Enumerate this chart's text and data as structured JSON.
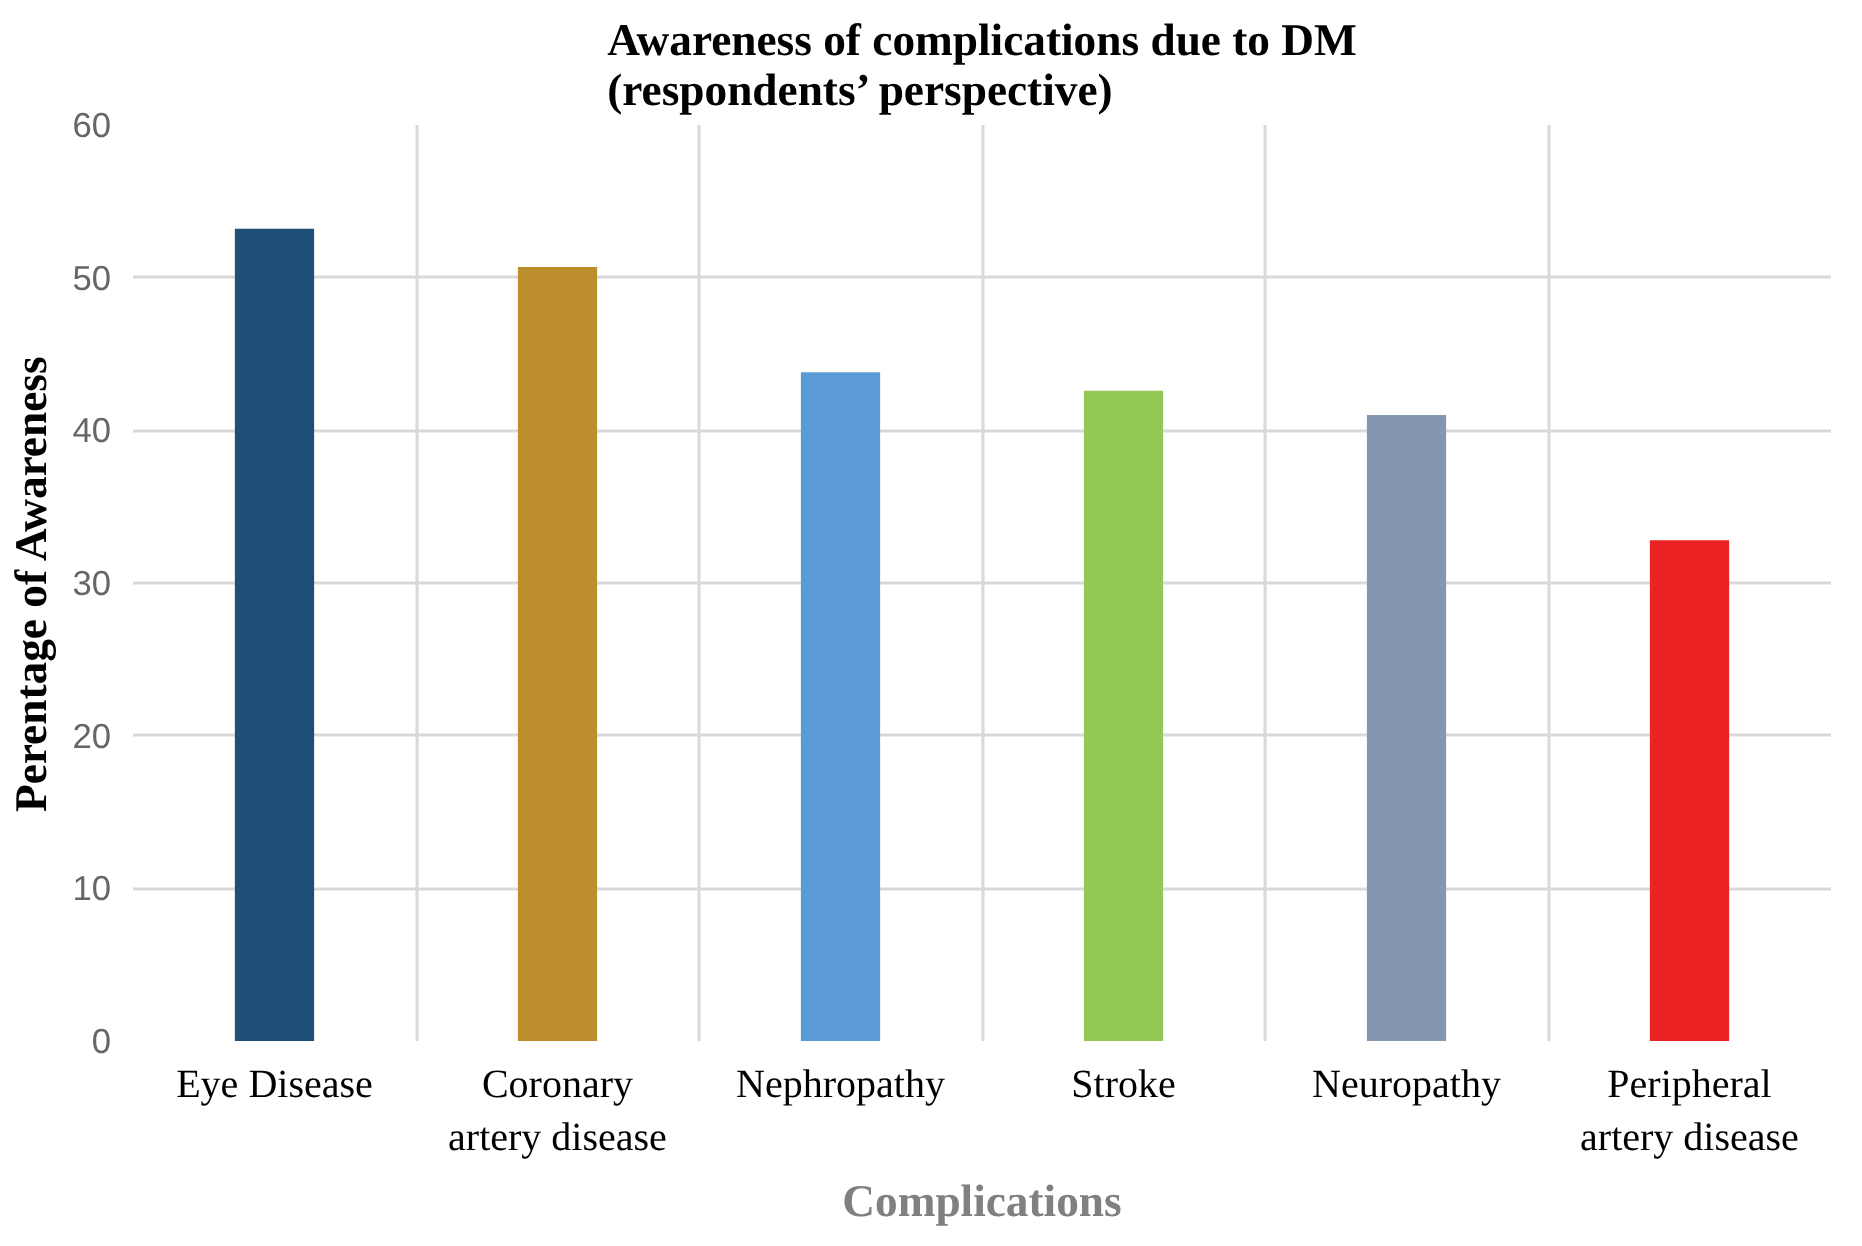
{
  "chart_data": {
    "type": "bar",
    "title": "Awareness of complications due to DM\n(respondents’ perspective)",
    "xlabel": "Complications",
    "ylabel": "Perentage of Awareness",
    "categories": [
      "Eye Disease",
      "Coronary artery disease",
      "Nephropathy",
      "Stroke",
      "Neuropathy",
      "Peripheral artery disease"
    ],
    "values": [
      53.2,
      50.7,
      43.8,
      42.6,
      41.0,
      32.8
    ],
    "colors": [
      "#1f4e79",
      "#bc8e2e",
      "#5b9bd5",
      "#92c853",
      "#8497b0",
      "#ec2224"
    ],
    "ylim": [
      0,
      60
    ],
    "yticks": [
      0,
      10,
      20,
      30,
      40,
      50,
      60
    ],
    "grid": true
  }
}
